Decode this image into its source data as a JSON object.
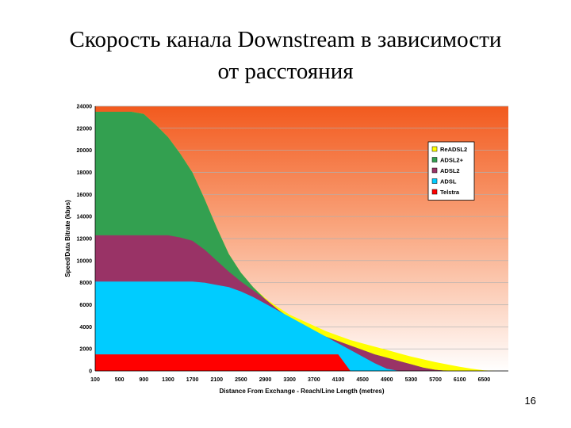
{
  "slide": {
    "title_line1": "Скорость канала Downstream в зависимости",
    "title_line2": "от расстояния",
    "page_number": "16"
  },
  "chart_data": {
    "type": "area",
    "xlabel": "Distance From Exchange - Reach/Line Length (metres)",
    "ylabel": "Speed/Data Bitrate (kbps)",
    "ylim": [
      0,
      24000
    ],
    "yticks": [
      0,
      2000,
      4000,
      6000,
      8000,
      10000,
      12000,
      14000,
      16000,
      18000,
      20000,
      22000,
      24000
    ],
    "x": [
      100,
      300,
      500,
      700,
      900,
      1100,
      1300,
      1500,
      1700,
      1900,
      2100,
      2300,
      2500,
      2700,
      2900,
      3100,
      3300,
      3500,
      3700,
      3900,
      4100,
      4300,
      4500,
      4700,
      4900,
      5100,
      5300,
      5500,
      5700,
      5900,
      6100,
      6300,
      6500,
      6700,
      6900
    ],
    "xtick_labels": [
      "100",
      "500",
      "900",
      "1300",
      "1700",
      "2100",
      "2500",
      "2900",
      "3300",
      "3700",
      "4100",
      "4500",
      "4900",
      "5300",
      "5700",
      "6100",
      "6500"
    ],
    "grid": true,
    "legend_position": "right",
    "background": [
      "#f25a1e",
      "#ffffff"
    ],
    "series": [
      {
        "name": "ReADSL2",
        "color": "#ffff00",
        "values": [
          23500,
          23500,
          23500,
          23500,
          23300,
          22300,
          21200,
          19700,
          18000,
          15600,
          13000,
          10600,
          8900,
          7600,
          6600,
          5800,
          5100,
          4600,
          4100,
          3600,
          3200,
          2800,
          2500,
          2200,
          1900,
          1600,
          1300,
          1050,
          800,
          580,
          380,
          200,
          50,
          0,
          0
        ]
      },
      {
        "name": "ADSL2+",
        "color": "#33a050",
        "values": [
          23500,
          23500,
          23500,
          23500,
          23300,
          22300,
          21200,
          19700,
          18000,
          15600,
          13000,
          10600,
          8900,
          7600,
          6500,
          5600,
          4800,
          4200,
          3600,
          3100,
          2700,
          2300,
          1900,
          1500,
          1200,
          900,
          600,
          300,
          100,
          0,
          0,
          0,
          0,
          0,
          0
        ]
      },
      {
        "name": "ADSL2",
        "color": "#993366",
        "values": [
          12300,
          12300,
          12300,
          12300,
          12300,
          12300,
          12300,
          12100,
          11800,
          11000,
          10000,
          9000,
          8100,
          7300,
          6500,
          5600,
          4800,
          4200,
          3600,
          3100,
          2700,
          2300,
          1900,
          1500,
          1200,
          900,
          600,
          300,
          100,
          0,
          0,
          0,
          0,
          0,
          0
        ]
      },
      {
        "name": "ADSL",
        "color": "#00ccff",
        "values": [
          8100,
          8100,
          8100,
          8100,
          8100,
          8100,
          8100,
          8100,
          8100,
          8000,
          7800,
          7600,
          7200,
          6700,
          6100,
          5500,
          4900,
          4300,
          3700,
          3100,
          2500,
          1900,
          1300,
          700,
          200,
          0,
          0,
          0,
          0,
          0,
          0,
          0,
          0,
          0,
          0
        ]
      },
      {
        "name": "Telstra",
        "color": "#ff0000",
        "values": [
          1500,
          1500,
          1500,
          1500,
          1500,
          1500,
          1500,
          1500,
          1500,
          1500,
          1500,
          1500,
          1500,
          1500,
          1500,
          1500,
          1500,
          1500,
          1500,
          1500,
          1500,
          0,
          0,
          0,
          0,
          0,
          0,
          0,
          0,
          0,
          0,
          0,
          0,
          0,
          0
        ]
      }
    ]
  }
}
